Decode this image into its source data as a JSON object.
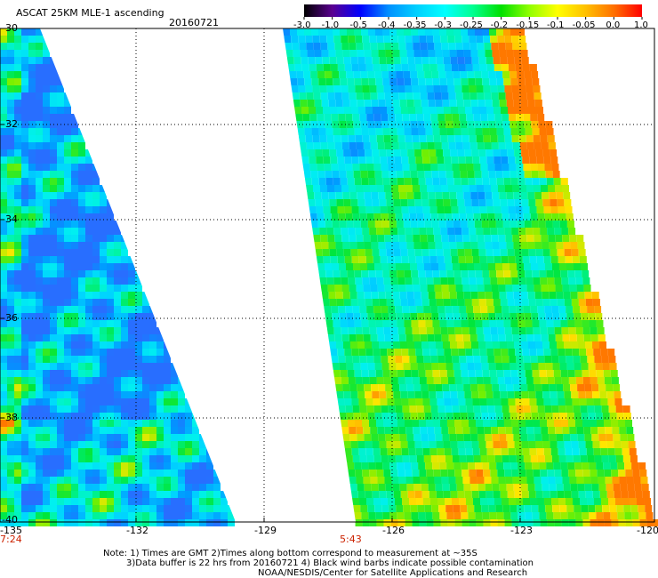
{
  "title": "ASCAT 25KM MLE-1 ascending",
  "date": "20160721",
  "colorbar": {
    "labels": [
      "-3.0",
      "-1.0",
      "-0.5",
      "-0.4",
      "-0.35",
      "-0.3",
      "-0.25",
      "-0.2",
      "-0.15",
      "-0.1",
      "-0.05",
      "0.0",
      "1.0"
    ],
    "colors": [
      "#000000",
      "#5a0090",
      "#0000ff",
      "#0090ff",
      "#00d0ff",
      "#00ffff",
      "#00ff90",
      "#00e000",
      "#90ff00",
      "#ffff00",
      "#ffc000",
      "#ff7000",
      "#ff0000"
    ]
  },
  "axes": {
    "lat_labels": [
      "-30",
      "-32",
      "-34",
      "-36",
      "-38",
      "-40"
    ],
    "lon_labels": [
      "-135",
      "-132",
      "-129",
      "-126",
      "-123",
      "-120"
    ]
  },
  "swath_times": [
    "7:24",
    "5:43"
  ],
  "notes": [
    "Note: 1) Times are GMT 2)Times along bottom correspond to measurement at ~35S",
    "3)Data buffer is 22 hrs from 20160721 4) Black wind barbs indicate possible contamination",
    "NOAA/NESDIS/Center for Satellite Applications and Research"
  ]
}
